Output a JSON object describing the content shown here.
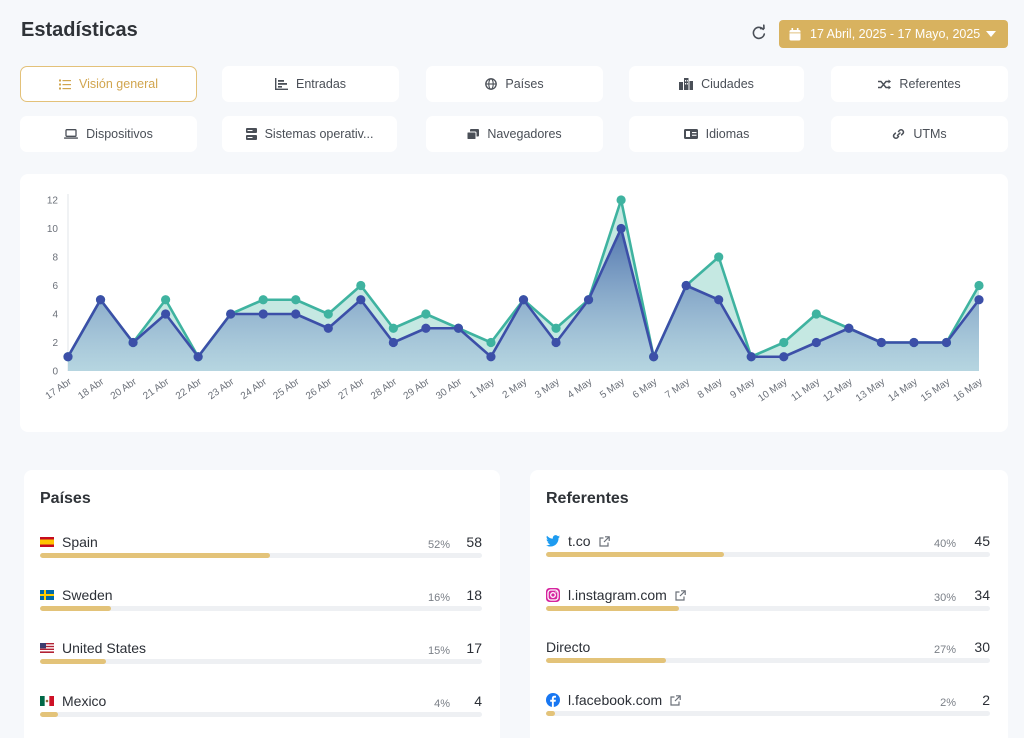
{
  "header": {
    "title": "Estadísticas",
    "date_range": "17 Abril, 2025 - 17 Mayo, 2025"
  },
  "tabs": [
    {
      "label": "Visión general",
      "icon": "list-icon",
      "active": true
    },
    {
      "label": "Entradas",
      "icon": "bar-chart-icon",
      "active": false
    },
    {
      "label": "Países",
      "icon": "globe-icon",
      "active": false
    },
    {
      "label": "Ciudades",
      "icon": "city-icon",
      "active": false
    },
    {
      "label": "Referentes",
      "icon": "shuffle-icon",
      "active": false
    },
    {
      "label": "Dispositivos",
      "icon": "laptop-icon",
      "active": false
    },
    {
      "label": "Sistemas operativ...",
      "icon": "server-icon",
      "active": false
    },
    {
      "label": "Navegadores",
      "icon": "windows-icon",
      "active": false
    },
    {
      "label": "Idiomas",
      "icon": "language-icon",
      "active": false
    },
    {
      "label": "UTMs",
      "icon": "link-icon",
      "active": false
    }
  ],
  "colors": {
    "accent": "#d8b25f",
    "series_teal": "#3fb3a0",
    "series_blue": "#3c4fa8",
    "bar_fill": "#e3c379"
  },
  "chart_data": {
    "type": "area",
    "categories": [
      "17 Abr",
      "18 Abr",
      "20 Abr",
      "21 Abr",
      "22 Abr",
      "23 Abr",
      "24 Abr",
      "25 Abr",
      "26 Abr",
      "27 Abr",
      "28 Abr",
      "29 Abr",
      "30 Abr",
      "1 May",
      "2 May",
      "3 May",
      "4 May",
      "5 May",
      "6 May",
      "7 May",
      "8 May",
      "9 May",
      "10 May",
      "11 May",
      "12 May",
      "13 May",
      "14 May",
      "15 May",
      "16 May"
    ],
    "ylim": [
      0,
      12
    ],
    "yticks": [
      0,
      2,
      4,
      6,
      8,
      10,
      12
    ],
    "grid": false,
    "series": [
      {
        "values": [
          1,
          5,
          2,
          5,
          1,
          4,
          5,
          5,
          4,
          6,
          3,
          4,
          3,
          2,
          5,
          3,
          5,
          12,
          1,
          6,
          8,
          1,
          2,
          4,
          3,
          2,
          2,
          2,
          6
        ],
        "color": "#3fb3a0"
      },
      {
        "values": [
          1,
          5,
          2,
          4,
          1,
          4,
          4,
          4,
          3,
          5,
          2,
          3,
          3,
          1,
          5,
          2,
          5,
          10,
          1,
          6,
          5,
          1,
          1,
          2,
          3,
          2,
          2,
          2,
          5
        ],
        "color": "#3c4fa8"
      }
    ]
  },
  "countries": {
    "title": "Países",
    "rows": [
      {
        "label": "Spain",
        "icon": "spain-flag-icon",
        "percent": "52%",
        "count": "58",
        "fraction": 0.52
      },
      {
        "label": "Sweden",
        "icon": "sweden-flag-icon",
        "percent": "16%",
        "count": "18",
        "fraction": 0.16
      },
      {
        "label": "United States",
        "icon": "usa-flag-icon",
        "percent": "15%",
        "count": "17",
        "fraction": 0.15
      },
      {
        "label": "Mexico",
        "icon": "mexico-flag-icon",
        "percent": "4%",
        "count": "4",
        "fraction": 0.04
      }
    ]
  },
  "referrers": {
    "title": "Referentes",
    "rows": [
      {
        "label": "t.co",
        "icon": "twitter-icon",
        "external": true,
        "percent": "40%",
        "count": "45",
        "fraction": 0.4
      },
      {
        "label": "l.instagram.com",
        "icon": "instagram-icon",
        "external": true,
        "percent": "30%",
        "count": "34",
        "fraction": 0.3
      },
      {
        "label": "Directo",
        "icon": "",
        "external": false,
        "percent": "27%",
        "count": "30",
        "fraction": 0.27
      },
      {
        "label": "l.facebook.com",
        "icon": "facebook-icon",
        "external": true,
        "percent": "2%",
        "count": "2",
        "fraction": 0.02
      }
    ]
  }
}
